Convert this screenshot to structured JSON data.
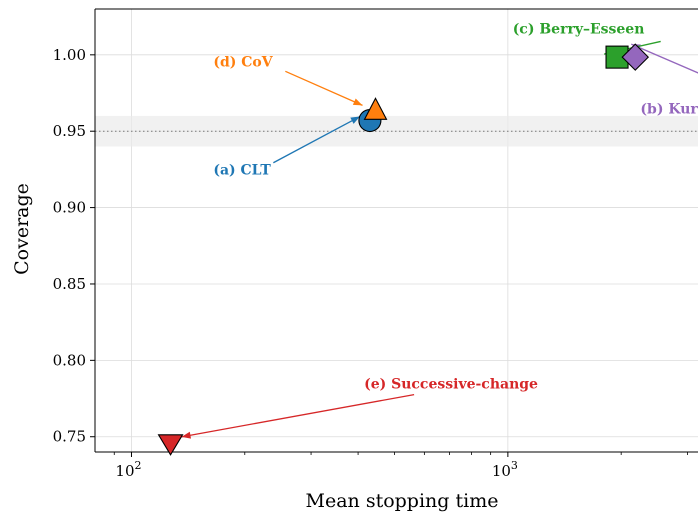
{
  "chart_data": {
    "type": "scatter",
    "xlabel": "Mean stopping time",
    "ylabel": "Coverage",
    "xscale": "log",
    "xlim": [
      80,
      3200
    ],
    "ylim": [
      0.74,
      1.03
    ],
    "x_ticks": [
      {
        "value": 100,
        "base": "10",
        "exp": "2"
      },
      {
        "value": 1000,
        "base": "10",
        "exp": "3"
      }
    ],
    "y_ticks": [
      {
        "value": 0.75,
        "label": "0.75"
      },
      {
        "value": 0.8,
        "label": "0.80"
      },
      {
        "value": 0.85,
        "label": "0.85"
      },
      {
        "value": 0.9,
        "label": "0.90"
      },
      {
        "value": 0.95,
        "label": "0.95"
      },
      {
        "value": 1.0,
        "label": "1.00"
      }
    ],
    "grid": true,
    "target_line": {
      "y": 0.95,
      "band": [
        0.94,
        0.96
      ],
      "style": "dotted"
    },
    "points": [
      {
        "label": "(a) CLT",
        "x": 430,
        "y": 0.957,
        "marker": "circle",
        "color": "#1f77b4",
        "label_x": 165,
        "label_y": 0.9215
      },
      {
        "label": "(b) Kurtosis two-stage",
        "x": 2180,
        "y": 0.9985,
        "marker": "diamond",
        "color": "#9467bd",
        "label_x": 2250,
        "label_y": 0.9615
      },
      {
        "label": "(c) Berry–Esseen",
        "x": 1950,
        "y": 0.9985,
        "marker": "square",
        "color": "#2ca02c",
        "label_x": 1030,
        "label_y": 1.014
      },
      {
        "label": "(d) CoV",
        "x": 445,
        "y": 0.963,
        "marker": "triangle-up",
        "color": "#ff7f0e",
        "label_x": 165,
        "label_y": 0.9925
      },
      {
        "label": "(e) Successive-change",
        "x": 127,
        "y": 0.746,
        "marker": "triangle-down",
        "color": "#d62728",
        "label_x": 415,
        "label_y": 0.7815
      }
    ]
  }
}
